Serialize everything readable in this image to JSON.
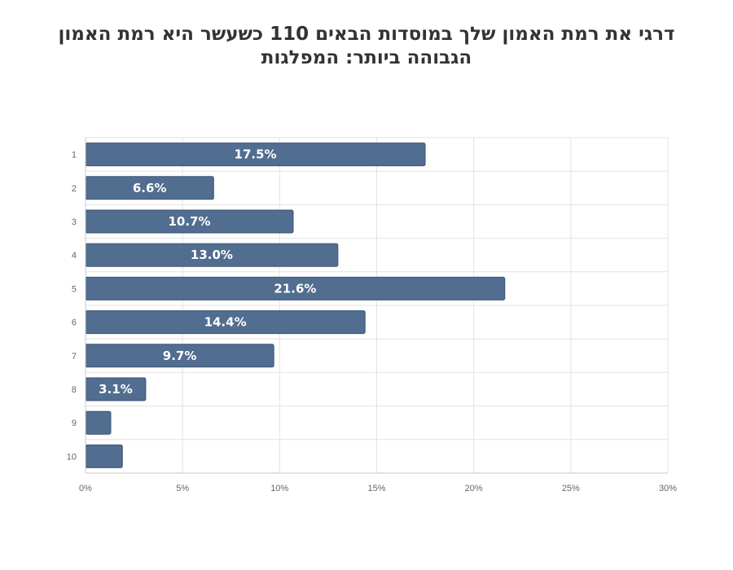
{
  "chart_data": {
    "type": "bar",
    "orientation": "horizontal",
    "title": "דרגי את רמת האמון שלך במוסדות הבאים 110 כשעשר היא רמת האמון הגבוהה ביותר: המפלגות",
    "categories": [
      "1",
      "2",
      "3",
      "4",
      "5",
      "6",
      "7",
      "8",
      "9",
      "10"
    ],
    "values": [
      17.5,
      6.6,
      10.7,
      13.0,
      21.6,
      14.4,
      9.7,
      3.1,
      1.3,
      1.9
    ],
    "data_labels": [
      "17.5%",
      "6.6%",
      "10.7%",
      "13.0%",
      "21.6%",
      "14.4%",
      "9.7%",
      "3.1%",
      "",
      ""
    ],
    "xlim": [
      0,
      30
    ],
    "x_ticks": [
      0,
      5,
      10,
      15,
      20,
      25,
      30
    ],
    "x_tick_labels": [
      "0%",
      "5%",
      "10%",
      "15%",
      "20%",
      "25%",
      "30%"
    ],
    "xlabel": "",
    "ylabel": "",
    "grid": true,
    "legend": "none",
    "colors": {
      "bar": "#516d8f",
      "bar_border": "#3d5574",
      "grid": "#e3e3e3",
      "axis": "#c8c8c8",
      "tick_text": "#666666",
      "label_text": "#ffffff",
      "title_text": "#333333"
    }
  }
}
